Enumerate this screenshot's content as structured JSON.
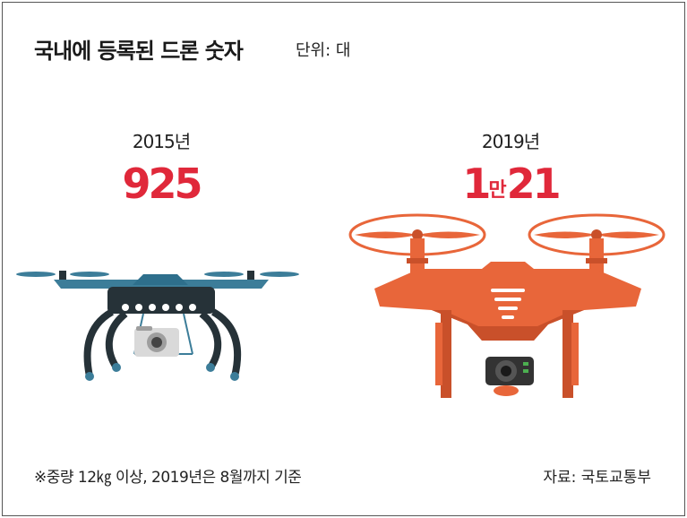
{
  "header": {
    "title": "국내에 등록된 드론 숫자",
    "unit": "단위: 대"
  },
  "chart_data": {
    "type": "table",
    "title": "국내에 등록된 드론 숫자",
    "unit": "단위: 대",
    "categories": [
      "2015년",
      "2019년"
    ],
    "values": [
      925,
      10021
    ],
    "value_labels": [
      {
        "main": "925",
        "suffix": ""
      },
      {
        "main": "1",
        "suffix": "만",
        "rest": "21"
      }
    ],
    "accent_color": "#e0283a"
  },
  "footer": {
    "note": "※중량 12㎏ 이상, 2019년은 8월까지 기준",
    "source": "자료: 국토교통부"
  },
  "colors": {
    "value": "#e0283a",
    "drone_small": "#263238",
    "drone_small_arm": "#3c7d99",
    "drone_large": "#e8663a",
    "drone_large_dark": "#c9502a"
  }
}
